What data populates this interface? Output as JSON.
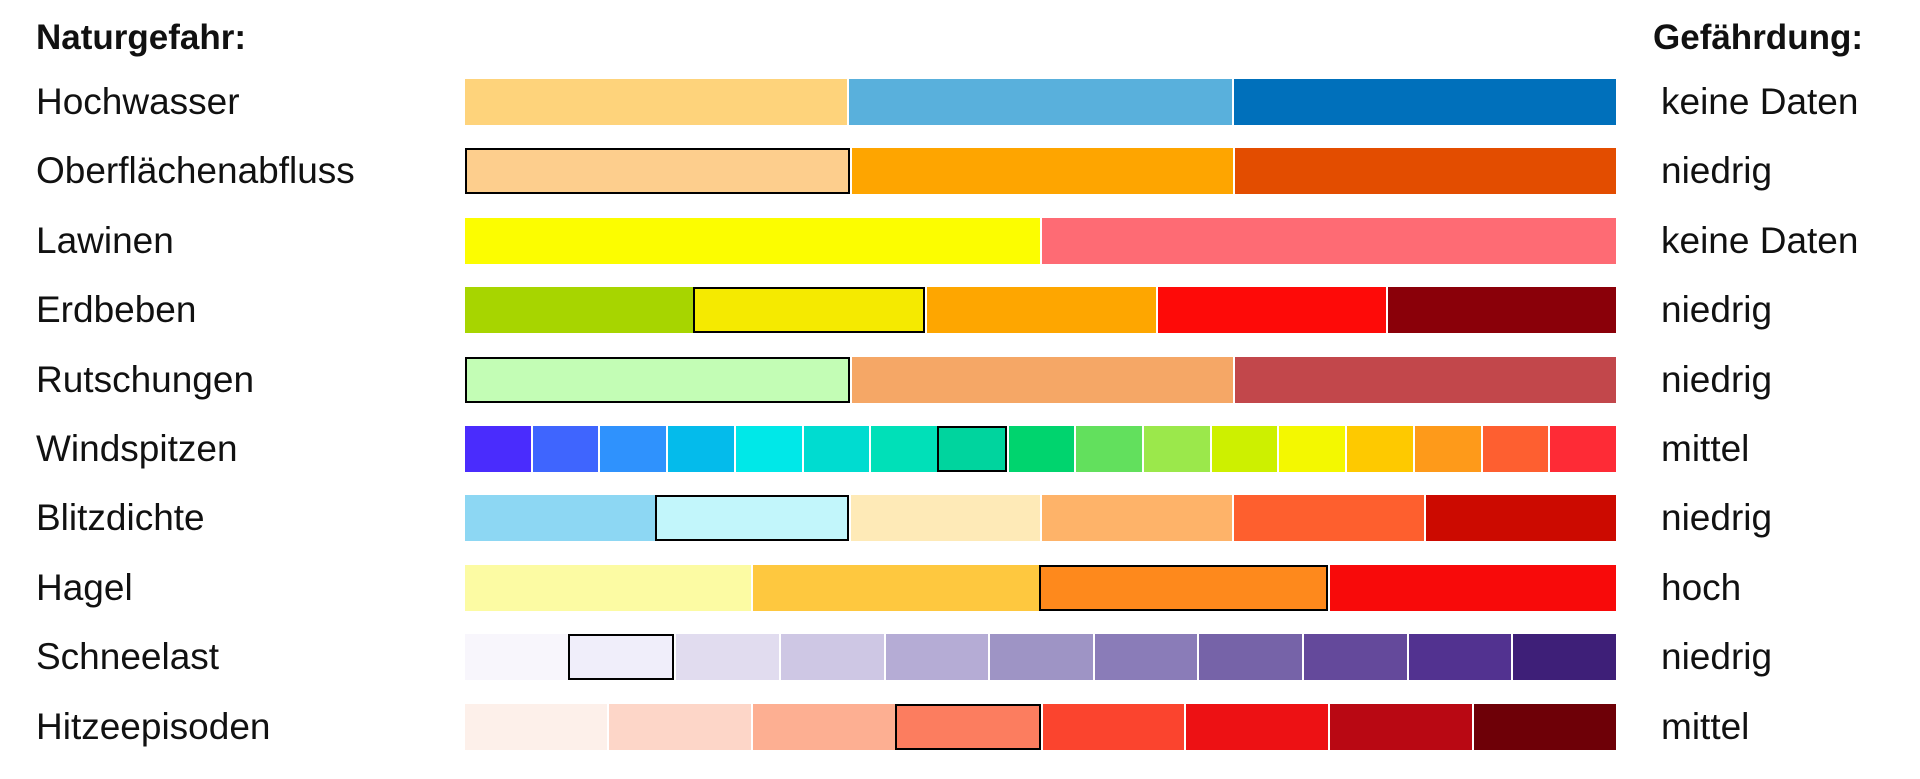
{
  "header": {
    "hazard": "Naturgefahr:",
    "rating": "Gefährdung:"
  },
  "rows": [
    {
      "name": "Hochwasser",
      "rating": "keine Daten",
      "segments": [
        {
          "color": "#fed37b"
        },
        {
          "color": "#59b0dc"
        },
        {
          "color": "#0070bb"
        }
      ]
    },
    {
      "name": "Oberflächenabfluss",
      "rating": "niedrig",
      "segments": [
        {
          "color": "#fdce8d",
          "selected": true
        },
        {
          "color": "#fea500"
        },
        {
          "color": "#e34d00"
        }
      ]
    },
    {
      "name": "Lawinen",
      "rating": "keine Daten",
      "segments": [
        {
          "color": "#fcfd00"
        },
        {
          "color": "#fe6b74"
        }
      ]
    },
    {
      "name": "Erdbeben",
      "rating": "niedrig",
      "segments": [
        {
          "color": "#a7d500"
        },
        {
          "color": "#f5ea00",
          "selected": true
        },
        {
          "color": "#fea600"
        },
        {
          "color": "#fe0a08"
        },
        {
          "color": "#8a0009"
        }
      ]
    },
    {
      "name": "Rutschungen",
      "rating": "niedrig",
      "segments": [
        {
          "color": "#c3fdb5",
          "selected": true
        },
        {
          "color": "#f5a766"
        },
        {
          "color": "#c2474b"
        }
      ]
    },
    {
      "name": "Windspitzen",
      "rating": "mittel",
      "segments": [
        {
          "color": "#4a2cfd"
        },
        {
          "color": "#3f65fe"
        },
        {
          "color": "#2f92fd"
        },
        {
          "color": "#04bbeb"
        },
        {
          "color": "#00e8e8"
        },
        {
          "color": "#00dcd0"
        },
        {
          "color": "#00e0b8"
        },
        {
          "color": "#00d49e",
          "selected": true
        },
        {
          "color": "#00d46e"
        },
        {
          "color": "#62e05d"
        },
        {
          "color": "#9be84b"
        },
        {
          "color": "#cdf000"
        },
        {
          "color": "#f4f800"
        },
        {
          "color": "#fec900"
        },
        {
          "color": "#fe9a1a"
        },
        {
          "color": "#fe5f30"
        },
        {
          "color": "#fe2b36"
        }
      ]
    },
    {
      "name": "Blitzdichte",
      "rating": "niedrig",
      "segments": [
        {
          "color": "#8dd7f3"
        },
        {
          "color": "#c2f6fb",
          "selected": true
        },
        {
          "color": "#feeab7"
        },
        {
          "color": "#feb369"
        },
        {
          "color": "#fe5f2e"
        },
        {
          "color": "#cc0a00"
        }
      ]
    },
    {
      "name": "Hagel",
      "rating": "hoch",
      "segments": [
        {
          "color": "#fcfba3"
        },
        {
          "color": "#fec83f"
        },
        {
          "color": "#fe891c",
          "selected": true
        },
        {
          "color": "#f80a0a"
        }
      ]
    },
    {
      "name": "Schneelast",
      "rating": "niedrig",
      "segments": [
        {
          "color": "#f8f6fc"
        },
        {
          "color": "#f0eefa",
          "selected": true
        },
        {
          "color": "#e1dcef"
        },
        {
          "color": "#cec7e4"
        },
        {
          "color": "#b5acd5"
        },
        {
          "color": "#9e94c5"
        },
        {
          "color": "#8a7cb8"
        },
        {
          "color": "#7663a8"
        },
        {
          "color": "#64499b"
        },
        {
          "color": "#523290"
        },
        {
          "color": "#3e1f78"
        }
      ]
    },
    {
      "name": "Hitzeepisoden",
      "rating": "mittel",
      "segments": [
        {
          "color": "#fdf0ea"
        },
        {
          "color": "#fdd6c8"
        },
        {
          "color": "#fdaf92"
        },
        {
          "color": "#fc7d5f",
          "selected": true
        },
        {
          "color": "#fb442e"
        },
        {
          "color": "#ed1114"
        },
        {
          "color": "#b90813"
        },
        {
          "color": "#6e0007"
        }
      ]
    }
  ]
}
